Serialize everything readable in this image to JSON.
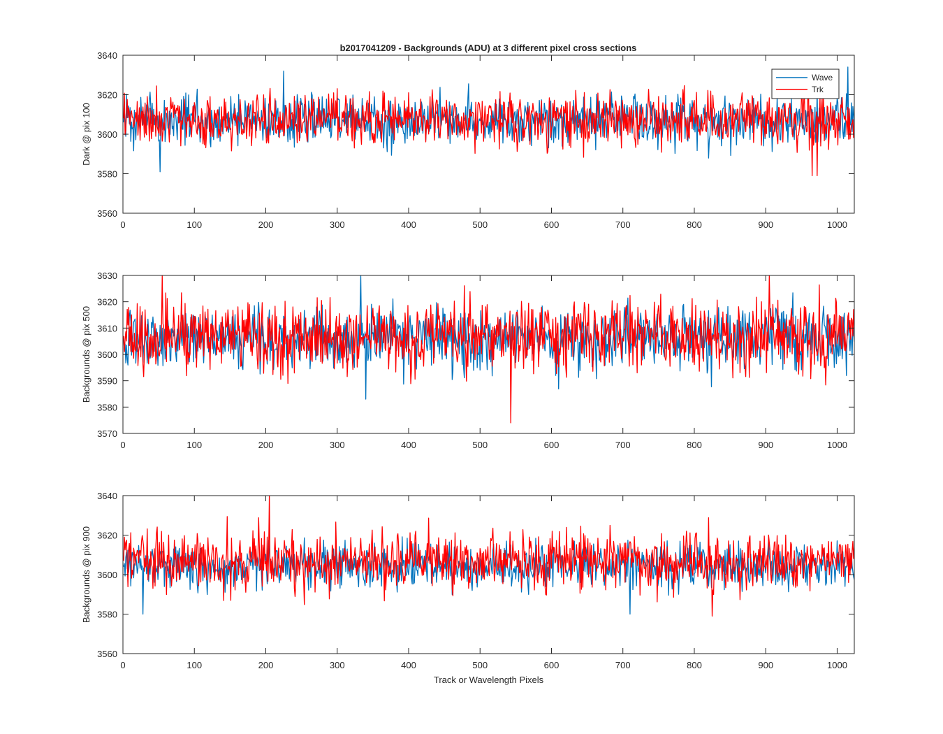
{
  "title": "b2017041209 - Backgrounds (ADU) at 3 different pixel cross sections",
  "colors": {
    "wave": "#0072BD",
    "trk": "#FF0000",
    "axes": "#262626"
  },
  "chart_data": [
    {
      "type": "line",
      "title": "b2017041209 - Backgrounds (ADU) at 3 different pixel cross sections",
      "xlabel": "",
      "ylabel": "Dark @ pix 100",
      "xlim": [
        0,
        1024
      ],
      "ylim": [
        3560,
        3640
      ],
      "xticks": [
        0,
        100,
        200,
        300,
        400,
        500,
        600,
        700,
        800,
        900,
        1000
      ],
      "yticks": [
        3560,
        3580,
        3600,
        3620,
        3640
      ],
      "legend": {
        "entries": [
          "Wave",
          "Trk"
        ],
        "placement": "top-right"
      },
      "grid": false,
      "series": [
        {
          "name": "Wave",
          "color": "#0072BD",
          "x_start": 1,
          "x_end": 1024,
          "mean": 3607,
          "approx_range": [
            3581,
            3634
          ],
          "x": [
            1,
            52,
            225,
            1015
          ],
          "y": [
            3606,
            3581,
            3632,
            3634
          ],
          "note_values": "noise trace, per-pixel values approximated"
        },
        {
          "name": "Trk",
          "color": "#FF0000",
          "x_start": 1,
          "x_end": 1024,
          "mean": 3607,
          "approx_range": [
            3579,
            3631
          ],
          "x": [
            1,
            965,
            972
          ],
          "y": [
            3608,
            3579,
            3579
          ]
        }
      ]
    },
    {
      "type": "line",
      "xlabel": "",
      "ylabel": "Backgrounds @ pix 500",
      "xlim": [
        0,
        1024
      ],
      "ylim": [
        3570,
        3630
      ],
      "xticks": [
        0,
        100,
        200,
        300,
        400,
        500,
        600,
        700,
        800,
        900,
        1000
      ],
      "yticks": [
        3570,
        3580,
        3590,
        3600,
        3610,
        3620,
        3630
      ],
      "grid": false,
      "series": [
        {
          "name": "Wave",
          "color": "#0072BD",
          "x_start": 1,
          "x_end": 1024,
          "mean": 3606,
          "approx_range": [
            3583,
            3630
          ],
          "x": [
            1,
            333,
            340
          ],
          "y": [
            3606,
            3630,
            3583
          ]
        },
        {
          "name": "Trk",
          "color": "#FF0000",
          "x_start": 1,
          "x_end": 1024,
          "mean": 3607,
          "approx_range": [
            3574,
            3630
          ],
          "x": [
            1,
            55,
            543,
            905
          ],
          "y": [
            3607,
            3630,
            3574,
            3630
          ]
        }
      ]
    },
    {
      "type": "line",
      "xlabel": "Track or Wavelength Pixels",
      "ylabel": "Backgrounds @ pix 900",
      "xlim": [
        0,
        1024
      ],
      "ylim": [
        3560,
        3640
      ],
      "xticks": [
        0,
        100,
        200,
        300,
        400,
        500,
        600,
        700,
        800,
        900,
        1000
      ],
      "yticks": [
        3560,
        3580,
        3600,
        3620,
        3640
      ],
      "grid": false,
      "series": [
        {
          "name": "Wave",
          "color": "#0072BD",
          "x_start": 1,
          "x_end": 1024,
          "mean": 3604,
          "approx_range": [
            3580,
            3628
          ],
          "x": [
            1,
            28,
            710
          ],
          "y": [
            3604,
            3580,
            3580
          ]
        },
        {
          "name": "Trk",
          "color": "#FF0000",
          "x_start": 1,
          "x_end": 1024,
          "mean": 3607,
          "approx_range": [
            3579,
            3640
          ],
          "x": [
            1,
            205,
            825
          ],
          "y": [
            3607,
            3640,
            3579
          ]
        }
      ]
    }
  ]
}
